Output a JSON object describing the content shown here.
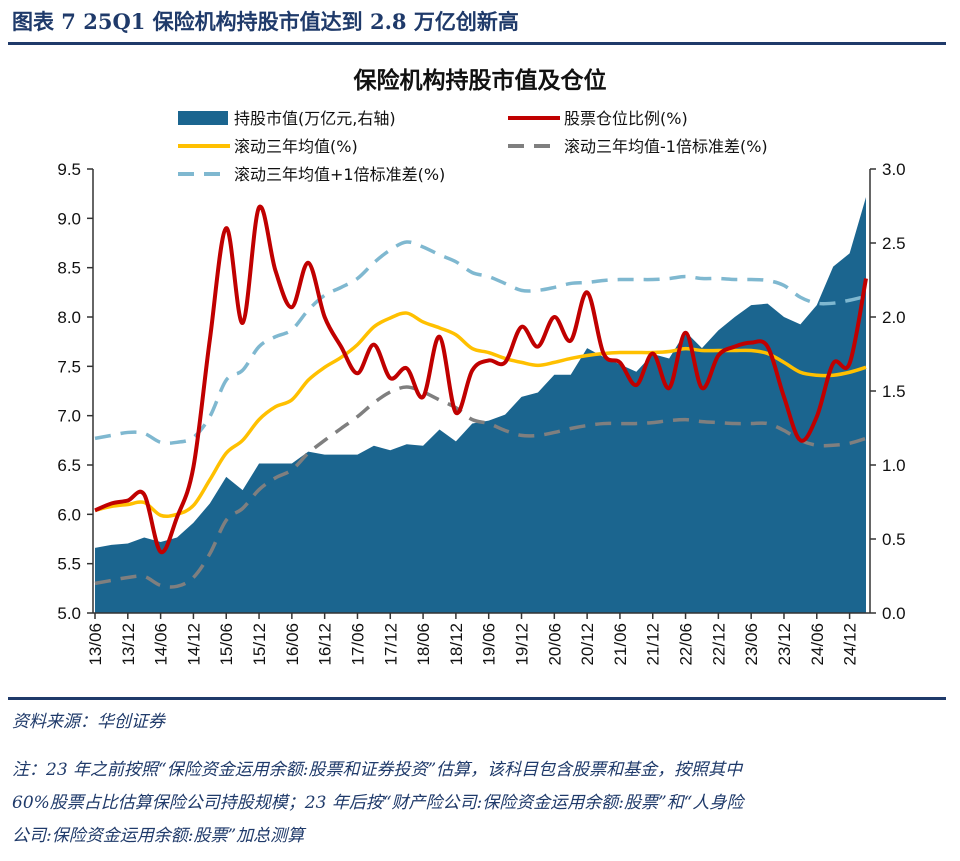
{
  "figure_title": "图表 7   25Q1 保险机构持股市值达到 2.8 万亿创新高",
  "source": "资料来源：华创证券",
  "note_lines": [
    "注：23 年之前按照“保险资金运用余额:股票和证券投资”估算，该科目包含股票和基金，按照其中",
    "60%股票占比估算保险公司持股规模；23 年后按“财产险公司:保险资金运用余额:股票”和“人身险",
    "公司:保险资金运用余额:股票”加总测算"
  ],
  "chart_data": {
    "type": "line",
    "title": "保险机构持股市值及仓位",
    "legend_placement": "top",
    "grid": false,
    "x": [
      "13/06",
      "13/09",
      "13/12",
      "14/03",
      "14/06",
      "14/09",
      "14/12",
      "15/03",
      "15/06",
      "15/09",
      "15/12",
      "16/03",
      "16/06",
      "16/09",
      "16/12",
      "17/03",
      "17/06",
      "17/09",
      "17/12",
      "18/03",
      "18/06",
      "18/09",
      "18/12",
      "19/03",
      "19/06",
      "19/09",
      "19/12",
      "20/03",
      "20/06",
      "20/09",
      "20/12",
      "21/03",
      "21/06",
      "21/09",
      "21/12",
      "22/03",
      "22/06",
      "22/09",
      "22/12",
      "23/03",
      "23/06",
      "23/09",
      "23/12",
      "24/03",
      "24/06",
      "24/09",
      "24/12",
      "25/03"
    ],
    "x_tick_labels": [
      "13/06",
      "13/12",
      "14/06",
      "14/12",
      "15/06",
      "15/12",
      "16/06",
      "16/12",
      "17/06",
      "17/12",
      "18/06",
      "18/12",
      "19/06",
      "19/12",
      "20/06",
      "20/12",
      "21/06",
      "21/12",
      "22/06",
      "22/12",
      "23/06",
      "23/12",
      "24/06",
      "24/12"
    ],
    "y_left": {
      "range": [
        5.0,
        9.5
      ],
      "ticks": [
        "5.0",
        "5.5",
        "6.0",
        "6.5",
        "7.0",
        "7.5",
        "8.0",
        "8.5",
        "9.0",
        "9.5"
      ]
    },
    "y_right": {
      "range": [
        0.0,
        3.0
      ],
      "ticks": [
        "0.0",
        "0.5",
        "1.0",
        "1.5",
        "2.0",
        "2.5",
        "3.0"
      ]
    },
    "series": [
      {
        "name": "持股市值(万亿元,右轴)",
        "type": "area",
        "axis": "right",
        "color": "#1b658f",
        "values": [
          0.44,
          0.46,
          0.47,
          0.51,
          0.48,
          0.51,
          0.61,
          0.74,
          0.92,
          0.83,
          1.01,
          1.01,
          1.01,
          1.09,
          1.07,
          1.07,
          1.07,
          1.13,
          1.1,
          1.14,
          1.13,
          1.24,
          1.16,
          1.28,
          1.3,
          1.34,
          1.46,
          1.49,
          1.61,
          1.61,
          1.79,
          1.73,
          1.68,
          1.63,
          1.75,
          1.72,
          1.9,
          1.79,
          1.91,
          2.0,
          2.08,
          2.09,
          2.0,
          1.95,
          2.08,
          2.34,
          2.43,
          2.81
        ]
      },
      {
        "name": "股票仓位比例(%)",
        "type": "line",
        "axis": "left",
        "color": "#c00000",
        "dash": "solid",
        "values": [
          6.04,
          6.11,
          6.14,
          6.2,
          5.62,
          5.97,
          6.48,
          7.77,
          8.9,
          7.94,
          9.11,
          8.47,
          8.1,
          8.55,
          8.0,
          7.7,
          7.43,
          7.72,
          7.38,
          7.48,
          7.19,
          7.8,
          7.03,
          7.46,
          7.56,
          7.54,
          7.9,
          7.7,
          8.0,
          7.76,
          8.25,
          7.63,
          7.54,
          7.31,
          7.63,
          7.28,
          7.84,
          7.28,
          7.61,
          7.7,
          7.74,
          7.7,
          7.19,
          6.75,
          6.99,
          7.53,
          7.53,
          8.39
        ]
      },
      {
        "name": "滚动三年均值(%)",
        "type": "line",
        "axis": "left",
        "color": "#ffc000",
        "dash": "solid",
        "values": [
          6.04,
          6.08,
          6.1,
          6.12,
          5.99,
          6.0,
          6.09,
          6.35,
          6.62,
          6.75,
          6.96,
          7.09,
          7.16,
          7.36,
          7.49,
          7.59,
          7.72,
          7.9,
          7.99,
          8.04,
          7.95,
          7.89,
          7.82,
          7.68,
          7.64,
          7.58,
          7.54,
          7.51,
          7.54,
          7.58,
          7.61,
          7.63,
          7.64,
          7.64,
          7.64,
          7.65,
          7.68,
          7.66,
          7.66,
          7.66,
          7.66,
          7.63,
          7.54,
          7.44,
          7.41,
          7.41,
          7.44,
          7.49
        ]
      },
      {
        "name": "滚动三年均值-1倍标准差(%)",
        "type": "line",
        "axis": "left",
        "color": "#7f7f7f",
        "dash": "dashed",
        "values": [
          5.3,
          5.33,
          5.36,
          5.37,
          5.28,
          5.27,
          5.36,
          5.6,
          5.94,
          6.06,
          6.25,
          6.37,
          6.45,
          6.62,
          6.75,
          6.87,
          6.99,
          7.13,
          7.24,
          7.29,
          7.24,
          7.16,
          7.08,
          6.96,
          6.92,
          6.85,
          6.8,
          6.8,
          6.83,
          6.87,
          6.9,
          6.92,
          6.92,
          6.92,
          6.93,
          6.95,
          6.96,
          6.94,
          6.93,
          6.92,
          6.92,
          6.92,
          6.85,
          6.75,
          6.7,
          6.7,
          6.72,
          6.77
        ]
      },
      {
        "name": "滚动三年均值+1倍标准差(%)",
        "type": "line",
        "axis": "left",
        "color": "#7fb8d0",
        "dash": "dashed",
        "values": [
          6.77,
          6.8,
          6.83,
          6.82,
          6.73,
          6.73,
          6.78,
          6.99,
          7.36,
          7.46,
          7.7,
          7.8,
          7.87,
          8.07,
          8.22,
          8.3,
          8.39,
          8.55,
          8.68,
          8.76,
          8.71,
          8.63,
          8.56,
          8.45,
          8.41,
          8.34,
          8.27,
          8.27,
          8.3,
          8.34,
          8.35,
          8.37,
          8.38,
          8.38,
          8.38,
          8.39,
          8.41,
          8.39,
          8.39,
          8.38,
          8.38,
          8.37,
          8.32,
          8.2,
          8.14,
          8.14,
          8.17,
          8.21
        ]
      }
    ]
  }
}
